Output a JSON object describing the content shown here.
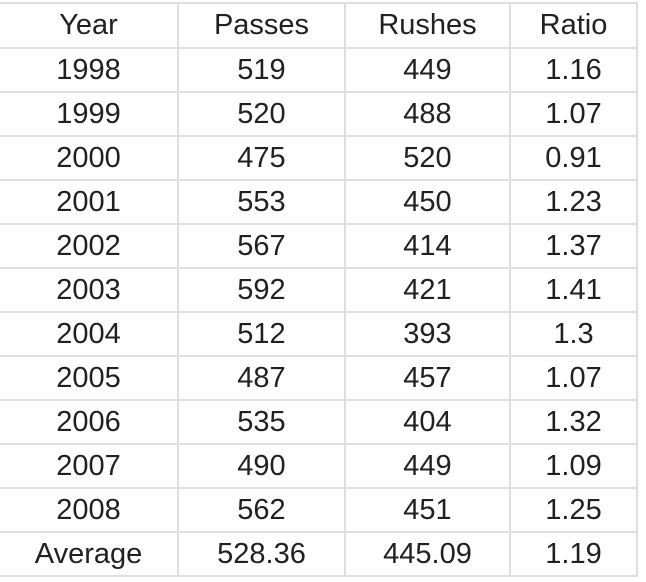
{
  "chart_data": {
    "type": "table",
    "title": "",
    "columns": [
      "Year",
      "Passes",
      "Rushes",
      "Ratio"
    ],
    "rows": [
      [
        "1998",
        "519",
        "449",
        "1.16"
      ],
      [
        "1999",
        "520",
        "488",
        "1.07"
      ],
      [
        "2000",
        "475",
        "520",
        "0.91"
      ],
      [
        "2001",
        "553",
        "450",
        "1.23"
      ],
      [
        "2002",
        "567",
        "414",
        "1.37"
      ],
      [
        "2003",
        "592",
        "421",
        "1.41"
      ],
      [
        "2004",
        "512",
        "393",
        "1.3"
      ],
      [
        "2005",
        "487",
        "457",
        "1.07"
      ],
      [
        "2006",
        "535",
        "404",
        "1.32"
      ],
      [
        "2007",
        "490",
        "449",
        "1.09"
      ],
      [
        "2008",
        "562",
        "451",
        "1.25"
      ],
      [
        "Average",
        "528.36",
        "445.09",
        "1.19"
      ]
    ]
  },
  "colors": {
    "grid_border": "#dedede",
    "text": "#212121",
    "background": "#ffffff"
  }
}
